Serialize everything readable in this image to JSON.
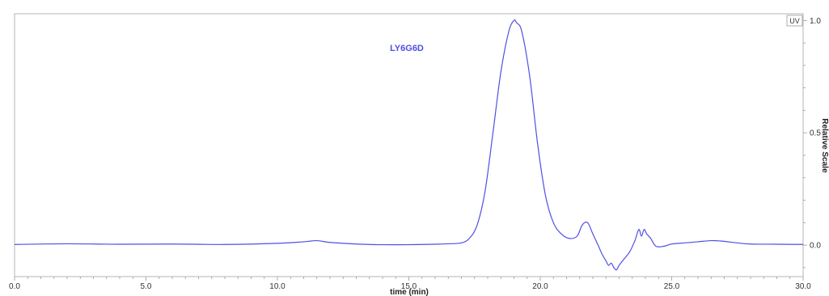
{
  "chart_data": {
    "type": "line",
    "title": "",
    "xlabel": "time (min)",
    "ylabel": "Relative Scale",
    "xlim": [
      0,
      30
    ],
    "ylim": [
      -0.14,
      1.03
    ],
    "x_ticks": [
      0,
      5,
      10,
      15,
      20,
      25,
      30
    ],
    "x_tick_labels": [
      "0.0",
      "5.0",
      "10.0",
      "15.0",
      "20.0",
      "25.0",
      "30.0"
    ],
    "y_ticks": [
      0,
      0.5,
      1
    ],
    "y_tick_labels": [
      "0.0",
      "0.5",
      "1.0"
    ],
    "y_axis_side": "right",
    "grid": false,
    "legend_tag": "UV",
    "colors": {
      "series": "#4f4fe6",
      "frame": "#b5b5b5",
      "text": "#333333"
    },
    "series": [
      {
        "name": "LY6G6D",
        "x": [
          0,
          2,
          4,
          6,
          8,
          10,
          11,
          11.5,
          12,
          13,
          14,
          15,
          16,
          16.5,
          17,
          17.3,
          17.6,
          17.9,
          18.2,
          18.5,
          18.8,
          19,
          19.1,
          19.3,
          19.6,
          19.9,
          20.2,
          20.5,
          20.8,
          21.1,
          21.4,
          21.6,
          21.8,
          22,
          22.2,
          22.35,
          22.5,
          22.6,
          22.7,
          22.8,
          22.9,
          23,
          23.2,
          23.4,
          23.6,
          23.75,
          23.85,
          23.95,
          24.05,
          24.2,
          24.4,
          24.7,
          25,
          25.5,
          26,
          26.5,
          26.9,
          27.5,
          28,
          29,
          30
        ],
        "y": [
          0.003,
          0.006,
          0.004,
          0.005,
          0.003,
          0.008,
          0.015,
          0.02,
          0.012,
          0.005,
          0.002,
          0.002,
          0.004,
          0.006,
          0.01,
          0.03,
          0.09,
          0.24,
          0.5,
          0.77,
          0.95,
          1.0,
          0.99,
          0.95,
          0.75,
          0.45,
          0.22,
          0.1,
          0.05,
          0.03,
          0.04,
          0.09,
          0.1,
          0.05,
          0.0,
          -0.04,
          -0.07,
          -0.09,
          -0.08,
          -0.1,
          -0.11,
          -0.09,
          -0.06,
          -0.03,
          0.02,
          0.07,
          0.04,
          0.07,
          0.05,
          0.03,
          -0.005,
          -0.005,
          0.005,
          0.01,
          0.015,
          0.02,
          0.018,
          0.01,
          0.005,
          0.004,
          0.003
        ]
      }
    ]
  }
}
